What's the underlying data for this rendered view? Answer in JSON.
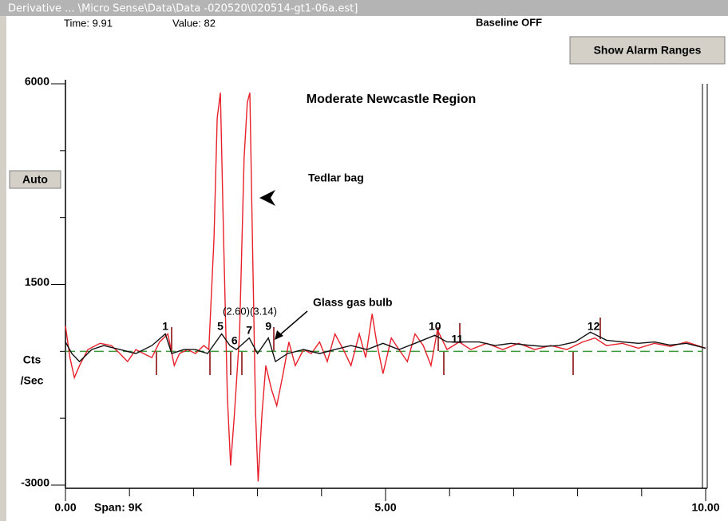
{
  "window": {
    "title": "Derivative ... \\Micro Sense\\Data\\Data -020520\\020514-gt1-06a.est]",
    "time": "Time:  9.91",
    "value": "Value:  82",
    "baseline_status": "Baseline OFF",
    "alarm_button": "Show Alarm Ranges",
    "auto_button": "Auto",
    "span": "Span: 9K"
  },
  "chart_data": {
    "type": "line",
    "title": "Moderate Newcastle Region",
    "y_label": [
      "Cts",
      "/Sec"
    ],
    "xlim": [
      0,
      10
    ],
    "ylim": [
      -3000,
      6000
    ],
    "xticks": [
      {
        "value": 0,
        "label": "0.00"
      },
      {
        "value": 5,
        "label": "5.00"
      },
      {
        "value": 10,
        "label": "10.00"
      }
    ],
    "xminorticks": [
      1,
      2,
      3,
      4,
      6,
      7,
      8,
      9
    ],
    "yticks": [
      -3000,
      1500,
      6000
    ],
    "yminorticks": [
      -1500,
      0,
      3000,
      4500
    ],
    "baseline": 0,
    "baseline_color": "#3a9a3a",
    "series": [
      {
        "name": "Tedlar bag",
        "color": "#e8202a",
        "x": [
          0.0,
          0.07,
          0.14,
          0.22,
          0.35,
          0.54,
          0.72,
          0.85,
          0.97,
          1.1,
          1.22,
          1.35,
          1.47,
          1.6,
          1.7,
          1.78,
          1.91,
          2.03,
          2.16,
          2.24,
          2.32,
          2.37,
          2.42,
          2.47,
          2.53,
          2.58,
          2.64,
          2.72,
          2.79,
          2.84,
          2.88,
          2.92,
          2.97,
          3.01,
          3.07,
          3.13,
          3.22,
          3.3,
          3.4,
          3.49,
          3.59,
          3.72,
          3.84,
          3.97,
          4.09,
          4.21,
          4.34,
          4.46,
          4.59,
          4.69,
          4.79,
          4.86,
          4.96,
          5.09,
          5.21,
          5.34,
          5.46,
          5.59,
          5.71,
          5.81,
          5.96,
          6.15,
          6.33,
          6.58,
          6.83,
          7.08,
          7.33,
          7.58,
          7.83,
          8.08,
          8.27,
          8.45,
          8.7,
          8.95,
          9.2,
          9.45,
          9.7,
          10.0
        ],
        "values": [
          570,
          -140,
          -590,
          -320,
          40,
          180,
          130,
          -50,
          -230,
          40,
          -50,
          -140,
          210,
          390,
          -320,
          -50,
          40,
          -50,
          130,
          40,
          2540,
          5230,
          5800,
          2540,
          -1040,
          -2560,
          -1400,
          390,
          4330,
          5580,
          5800,
          2540,
          -1400,
          -2920,
          -1400,
          -320,
          -860,
          -1220,
          -500,
          210,
          -320,
          40,
          -50,
          210,
          -230,
          390,
          40,
          -320,
          390,
          -140,
          840,
          210,
          -500,
          300,
          40,
          -230,
          390,
          130,
          -320,
          480,
          40,
          210,
          40,
          180,
          40,
          180,
          40,
          130,
          40,
          210,
          300,
          130,
          180,
          70,
          180,
          110,
          210,
          70
        ]
      },
      {
        "name": "Glass gas bulb",
        "color": "#111111",
        "x": [
          0.0,
          0.1,
          0.22,
          0.41,
          0.6,
          0.85,
          1.1,
          1.35,
          1.56,
          1.66,
          1.85,
          2.03,
          2.22,
          2.44,
          2.57,
          2.67,
          2.87,
          3.0,
          3.17,
          3.28,
          3.47,
          3.72,
          3.97,
          4.21,
          4.46,
          4.71,
          4.96,
          5.21,
          5.46,
          5.77,
          5.96,
          6.15,
          6.46,
          6.71,
          6.96,
          7.21,
          7.46,
          7.71,
          7.96,
          8.2,
          8.45,
          8.7,
          8.95,
          9.2,
          9.45,
          9.7,
          10.0
        ],
        "values": [
          210,
          -50,
          -230,
          40,
          130,
          40,
          -50,
          130,
          390,
          -50,
          40,
          40,
          -50,
          390,
          130,
          40,
          300,
          -50,
          300,
          -230,
          -50,
          40,
          -50,
          40,
          130,
          40,
          180,
          40,
          180,
          360,
          210,
          210,
          210,
          130,
          180,
          140,
          110,
          130,
          210,
          430,
          250,
          210,
          180,
          210,
          140,
          180,
          70
        ]
      }
    ],
    "peaks": [
      {
        "label": "1",
        "x": 1.56
      },
      {
        "label": "5",
        "x": 2.42
      },
      {
        "label": "6",
        "x": 2.64
      },
      {
        "label": "7",
        "x": 2.87
      },
      {
        "label": "9",
        "x": 3.17
      },
      {
        "label": "10",
        "x": 5.77
      },
      {
        "label": "11",
        "x": 6.12
      },
      {
        "label": "12",
        "x": 8.25
      }
    ],
    "peak_times": [
      "(2.60)",
      "(3.14)"
    ]
  }
}
